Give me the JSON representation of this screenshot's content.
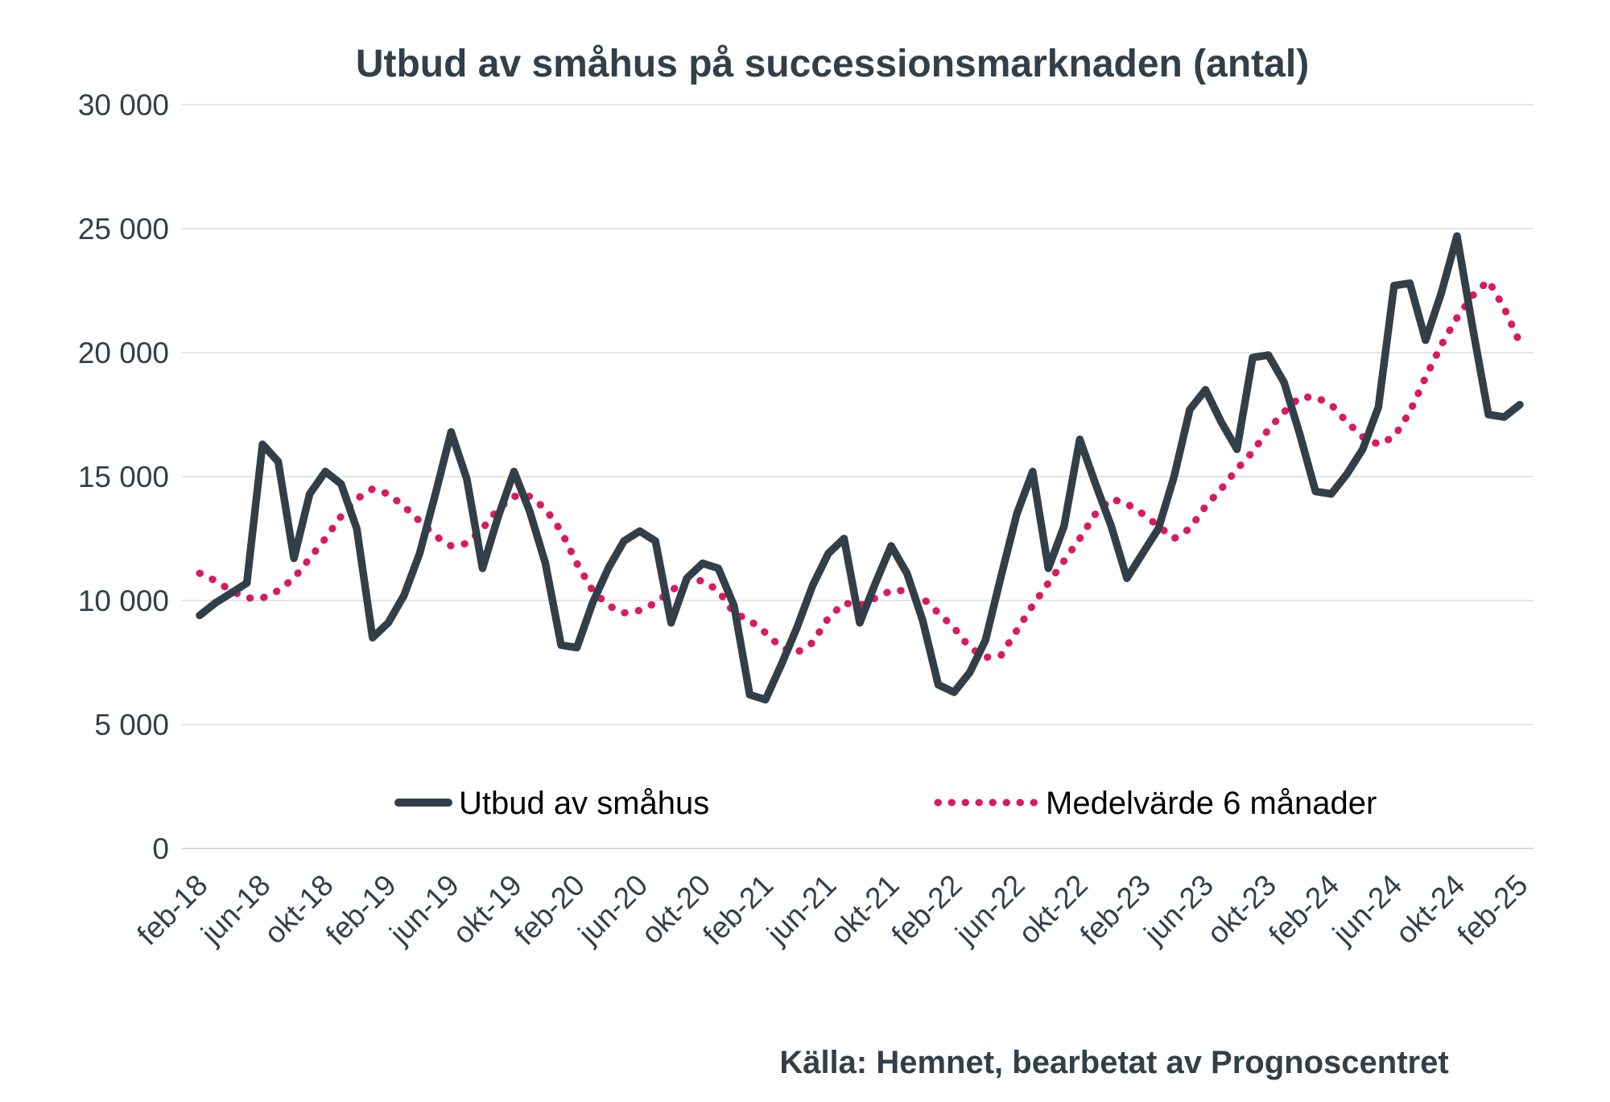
{
  "title": "Utbud av småhus på successionsmarknaden (antal)",
  "source_note": "Källa: Hemnet, bearbetat av Prognoscentret",
  "legend": {
    "series": [
      {
        "label": "Utbud av småhus",
        "style": "solid"
      },
      {
        "label": "Medelvärde 6 månader",
        "style": "dotted"
      }
    ]
  },
  "colors": {
    "supply_line": "#333F48",
    "average_line": "#D81B60",
    "grid_line": "#E5E5E5",
    "axis_text": "#33404A",
    "title_text": "#333F48"
  },
  "chart_data": {
    "type": "line",
    "title": "Utbud av småhus på successionsmarknaden (antal)",
    "xlabel": "",
    "ylabel": "",
    "ylim": [
      0,
      30000
    ],
    "y_tick_step": 5000,
    "y_tick_labels": [
      "0",
      "5 000",
      "10 000",
      "15 000",
      "20 000",
      "25 000",
      "30 000"
    ],
    "grid": "horizontal",
    "legend_position": "bottom-inside",
    "n_points": 85,
    "x_start_month": "feb-18",
    "x_end_month": "feb-25",
    "x_tick_every": 4,
    "x_tick_labels": [
      "feb-18",
      "jun-18",
      "okt-18",
      "feb-19",
      "jun-19",
      "okt-19",
      "feb-20",
      "jun-20",
      "okt-20",
      "feb-21",
      "jun-21",
      "okt-21",
      "feb-22",
      "jun-22",
      "okt-22",
      "feb-23",
      "jun-23",
      "okt-23",
      "feb-24",
      "jun-24",
      "okt-24",
      "feb-25"
    ],
    "series": [
      {
        "name": "Utbud av småhus",
        "values": [
          9400,
          9900,
          10300,
          10700,
          16300,
          15600,
          11700,
          14300,
          15200,
          14700,
          12900,
          8500,
          9100,
          10200,
          11900,
          14300,
          16800,
          14900,
          11300,
          13400,
          15200,
          13600,
          11500,
          8200,
          8100,
          9900,
          11300,
          12400,
          12800,
          12400,
          9100,
          10900,
          11500,
          11300,
          9800,
          6200,
          6000,
          7400,
          8900,
          10600,
          11900,
          12500,
          9100,
          10700,
          12200,
          11100,
          9200,
          6600,
          6300,
          7100,
          8400,
          11000,
          13500,
          15200,
          11300,
          13000,
          16500,
          14700,
          13000,
          10900,
          11900,
          12900,
          15000,
          17700,
          18500,
          17200,
          16100,
          19800,
          19900,
          18800,
          16700,
          14400,
          14300,
          15100,
          16100,
          17800,
          22700,
          22800,
          20500,
          22400,
          24700,
          21000,
          17500,
          17400,
          17900
        ]
      },
      {
        "name": "Medelvärde 6 månader",
        "values": [
          11100,
          10800,
          10400,
          10100,
          10100,
          10400,
          10900,
          11700,
          12500,
          13400,
          14100,
          14500,
          14300,
          13800,
          13200,
          12600,
          12200,
          12300,
          12900,
          13700,
          14200,
          14200,
          13700,
          12800,
          11500,
          10400,
          9800,
          9500,
          9600,
          9900,
          10400,
          10800,
          10800,
          10400,
          9500,
          9200,
          8700,
          8100,
          7900,
          8300,
          9300,
          9900,
          9800,
          10100,
          10400,
          10400,
          10100,
          9500,
          8900,
          8100,
          7700,
          7800,
          8800,
          9800,
          10700,
          11600,
          12500,
          13500,
          14100,
          13900,
          13500,
          13000,
          12500,
          12900,
          13800,
          14500,
          15300,
          16000,
          16900,
          17600,
          18200,
          18200,
          17900,
          17200,
          16600,
          16300,
          16600,
          17600,
          19000,
          20300,
          21400,
          22300,
          22900,
          21800,
          20400
        ]
      }
    ]
  }
}
